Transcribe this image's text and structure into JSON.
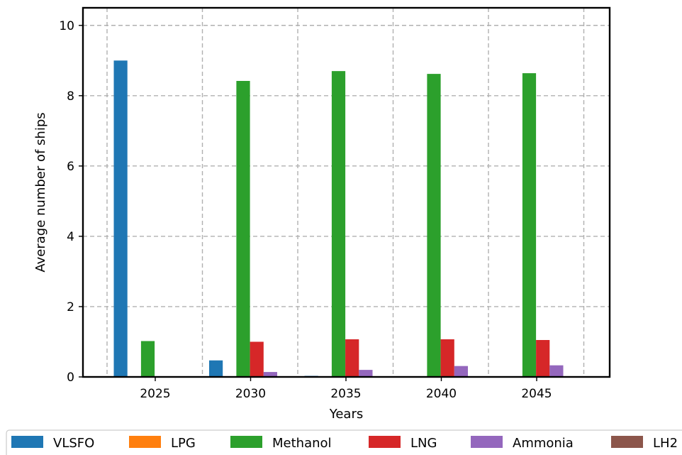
{
  "chart_data": {
    "type": "bar",
    "title": "",
    "xlabel": "Years",
    "ylabel": "Average number of ships",
    "categories": [
      "2025",
      "2030",
      "2035",
      "2040",
      "2045"
    ],
    "ylim": [
      0,
      10.5
    ],
    "yticks": [
      0,
      2,
      4,
      6,
      8,
      10
    ],
    "grid": true,
    "legend_position": "bottom",
    "series": [
      {
        "name": "VLSFO",
        "color": "#1f77b4",
        "values": [
          9.0,
          0.47,
          0.03,
          0.0,
          0.0
        ]
      },
      {
        "name": "LPG",
        "color": "#ff7f0e",
        "values": [
          0.0,
          0.0,
          0.0,
          0.0,
          0.0
        ]
      },
      {
        "name": "Methanol",
        "color": "#2ca02c",
        "values": [
          1.02,
          8.42,
          8.7,
          8.62,
          8.64
        ]
      },
      {
        "name": "LNG",
        "color": "#d62728",
        "values": [
          0.0,
          1.0,
          1.07,
          1.07,
          1.05
        ]
      },
      {
        "name": "Ammonia",
        "color": "#9467bd",
        "values": [
          0.0,
          0.14,
          0.2,
          0.31,
          0.33
        ]
      },
      {
        "name": "LH2",
        "color": "#8c564b",
        "values": [
          0.0,
          0.0,
          0.0,
          0.0,
          0.0
        ]
      }
    ]
  }
}
